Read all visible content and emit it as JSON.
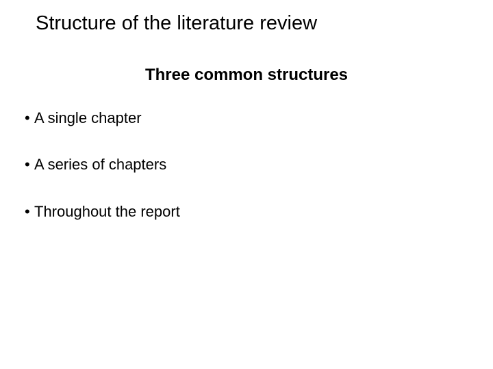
{
  "slide": {
    "title": "Structure of the literature review",
    "subtitle": "Three common structures",
    "bullets": [
      "A single chapter",
      "A series of chapters",
      "Throughout the report"
    ]
  },
  "style": {
    "background_color": "#ffffff",
    "text_color": "#000000",
    "font_family": "Arial",
    "title_fontsize": 29,
    "title_fontweight": 400,
    "subtitle_fontsize": 24,
    "subtitle_fontweight": 700,
    "body_fontsize": 22,
    "body_fontweight": 400,
    "bullet_char": "•",
    "slide_width": 720,
    "slide_height": 540
  }
}
